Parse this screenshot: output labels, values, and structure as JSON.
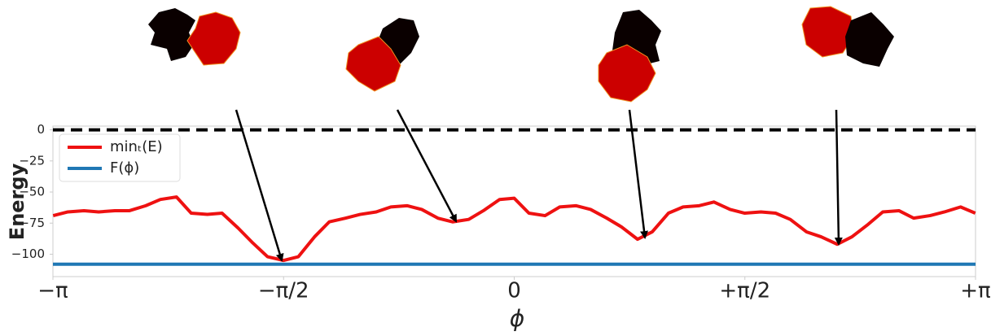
{
  "chart_data": {
    "type": "line",
    "xlabel": "ϕ",
    "ylabel": "Energy",
    "xlim": [
      -3.14159,
      3.14159
    ],
    "ylim": [
      -118,
      3
    ],
    "xticks": [
      {
        "value": -3.14159,
        "label": "−π"
      },
      {
        "value": -1.5708,
        "label": "−π/2"
      },
      0,
      {
        "value": 1.5708,
        "label": "+π/2"
      },
      {
        "value": 3.14159,
        "label": "+π"
      }
    ],
    "yticks": [
      0,
      {
        "value": -25,
        "label": "−25"
      },
      {
        "value": -50,
        "label": "−50"
      },
      {
        "value": -75,
        "label": "−75"
      },
      {
        "value": -100,
        "label": "−100"
      }
    ],
    "grid": false,
    "legend": "upper left",
    "hline": {
      "value": 0,
      "color": "#000000",
      "dashed": true
    },
    "series": [
      {
        "name": "minₜ(E)",
        "color": "#ee1111",
        "x": [
          -3.14,
          -3.04,
          -2.93,
          -2.83,
          -2.72,
          -2.62,
          -2.51,
          -2.41,
          -2.3,
          -2.2,
          -2.09,
          -1.99,
          -1.88,
          -1.78,
          -1.68,
          -1.57,
          -1.47,
          -1.36,
          -1.26,
          -1.15,
          -1.05,
          -0.94,
          -0.84,
          -0.73,
          -0.63,
          -0.52,
          -0.42,
          -0.31,
          -0.21,
          -0.1,
          0,
          0.1,
          0.21,
          0.31,
          0.42,
          0.52,
          0.63,
          0.73,
          0.84,
          0.94,
          1.05,
          1.15,
          1.26,
          1.36,
          1.47,
          1.57,
          1.68,
          1.78,
          1.88,
          1.99,
          2.09,
          2.2,
          2.3,
          2.41,
          2.51,
          2.62,
          2.72,
          2.83,
          2.93,
          3.04,
          3.14
        ],
        "values": [
          -69,
          -66,
          -65,
          -66,
          -65,
          -65,
          -61,
          -56,
          -54,
          -67,
          -68,
          -67,
          -79,
          -91,
          -102,
          -105,
          -102,
          -86,
          -74,
          -71,
          -68,
          -66,
          -62,
          -61,
          -64,
          -71,
          -74,
          -72,
          -65,
          -56,
          -55,
          -67,
          -69,
          -62,
          -61,
          -64,
          -71,
          -78,
          -88,
          -82,
          -67,
          -62,
          -61,
          -58,
          -64,
          -67,
          -66,
          -67,
          -72,
          -82,
          -86,
          -92,
          -86,
          -76,
          -66,
          -65,
          -71,
          -69,
          -66,
          -62,
          -67
        ]
      },
      {
        "name": "F(ϕ)",
        "color": "#1f77b4",
        "x": [
          -3.14159,
          3.14159
        ],
        "values": [
          -108,
          -108
        ]
      }
    ]
  }
}
